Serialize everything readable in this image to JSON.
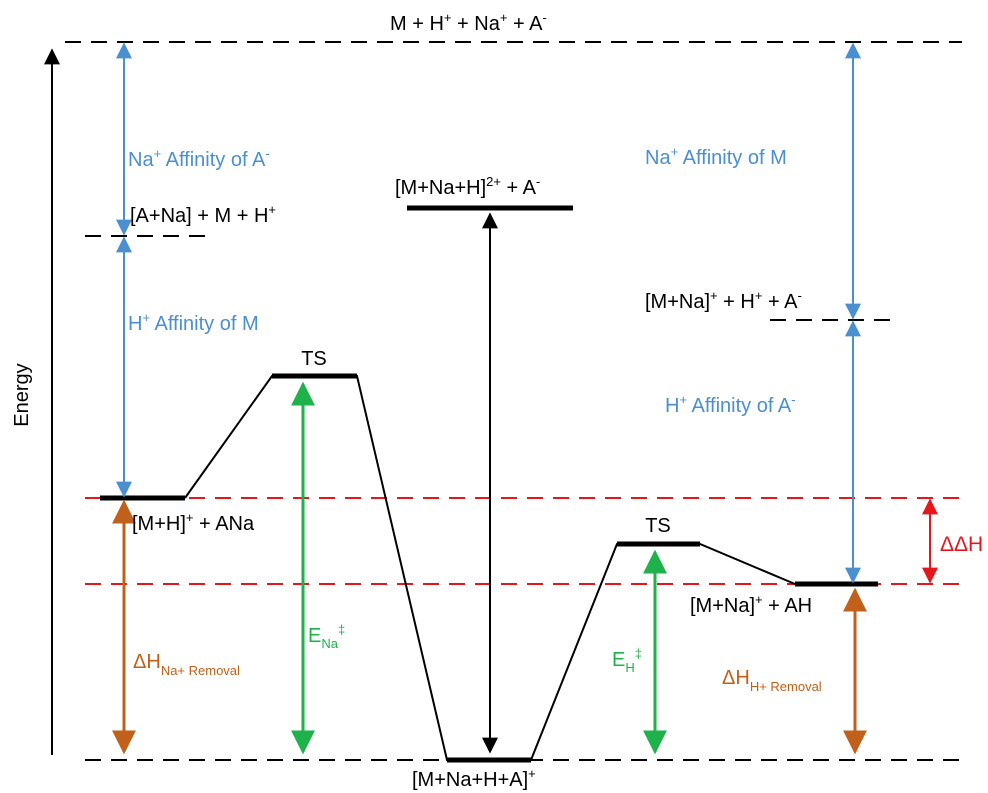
{
  "axis": {
    "label": "Energy"
  },
  "labels": {
    "top": {
      "base": "M + H",
      "s1": "+",
      "m1": " + Na",
      "s2": "+",
      "m2": " + A",
      "s3": "-"
    },
    "ana": {
      "text": "[A+Na] + M + H",
      "sup": "+"
    },
    "mna_ha": {
      "base": "[M+Na]",
      "s1": "+",
      "m1": " + H",
      "s2": "+",
      "m2": " + A",
      "s3": "-"
    },
    "complex2": {
      "base": "[M+Na+H]",
      "s1": "2+",
      "m1": " + A",
      "s2": "-"
    },
    "ts_left": "TS",
    "ts_right": "TS",
    "mh_ana": {
      "base": "[M+H]",
      "sup": "+",
      "rest": " + ANa"
    },
    "mna_ah": {
      "base": "[M+Na]",
      "sup": "+",
      "rest": " + AH"
    },
    "bottom": {
      "base": "[M+Na+H+A]",
      "sup": "+"
    }
  },
  "affinities": {
    "na_a": {
      "pre": "Na",
      "sup1": "+",
      "mid": " Affinity of A",
      "sup2": "-"
    },
    "h_m": {
      "pre": "H",
      "sup1": "+",
      "mid": " Affinity of M"
    },
    "na_m": {
      "pre": "Na",
      "sup1": "+",
      "mid": " Affinity of M"
    },
    "h_a": {
      "pre": "H",
      "sup1": "+",
      "mid": " Affinity of A",
      "sup2": "-"
    }
  },
  "barriers": {
    "e_na": {
      "base": "E",
      "sub": "Na",
      "sup": "‡"
    },
    "e_h": {
      "base": "E",
      "sub": "H",
      "sup": "‡"
    }
  },
  "removals": {
    "na": {
      "base": "ΔH",
      "sub": "Na+ Removal"
    },
    "h": {
      "base": "ΔH",
      "sub": "H+ Removal"
    }
  },
  "delta": {
    "label": "ΔΔH"
  },
  "colors": {
    "blue": "#4a8fd0",
    "green": "#1fb24a",
    "orange": "#c0601a",
    "red": "#e5161c",
    "black": "#000000"
  }
}
